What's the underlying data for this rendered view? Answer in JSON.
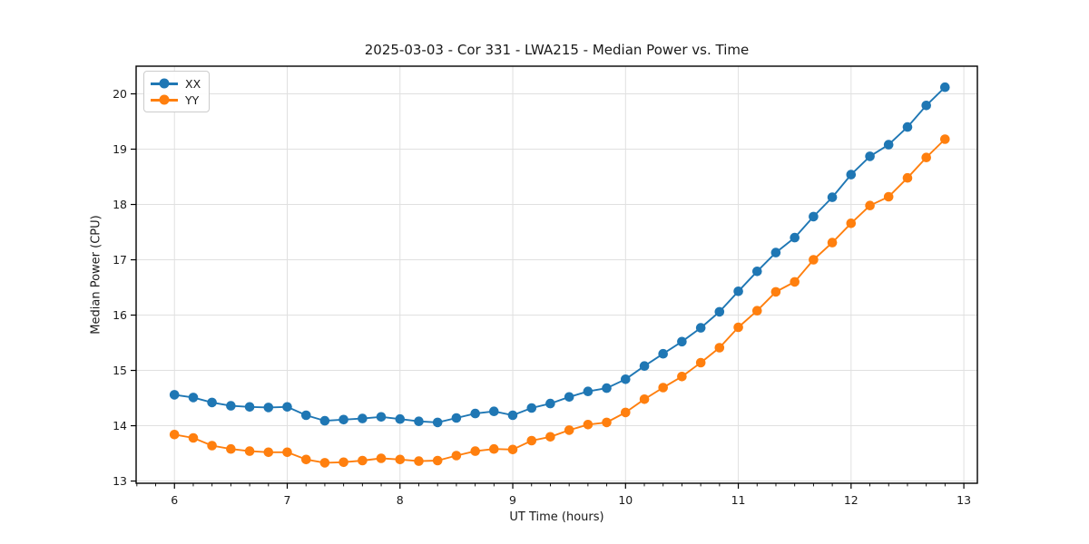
{
  "chart_data": {
    "type": "line",
    "title": "2025-03-03 - Cor 331 - LWA215 - Median Power vs. Time",
    "xlabel": "UT Time (hours)",
    "ylabel": "Median Power (CPU)",
    "xlim": [
      5.66,
      13.12
    ],
    "ylim": [
      12.96,
      20.5
    ],
    "xticks": [
      6,
      7,
      8,
      9,
      10,
      11,
      12,
      13
    ],
    "yticks": [
      13,
      14,
      15,
      16,
      17,
      18,
      19,
      20
    ],
    "x_minor_tick_step": 0.1667,
    "grid": "major-both",
    "legend_position": "upper-left",
    "colors": {
      "grid": "#e0e0e0",
      "axis": "#000000",
      "text": "#1a1a1a",
      "background": "#ffffff"
    },
    "x": [
      6.0,
      6.167,
      6.333,
      6.5,
      6.667,
      6.833,
      7.0,
      7.167,
      7.333,
      7.5,
      7.667,
      7.833,
      8.0,
      8.167,
      8.333,
      8.5,
      8.667,
      8.833,
      9.0,
      9.167,
      9.333,
      9.5,
      9.667,
      9.833,
      10.0,
      10.167,
      10.333,
      10.5,
      10.667,
      10.833,
      11.0,
      11.167,
      11.333,
      11.5,
      11.667,
      11.833,
      12.0,
      12.167,
      12.333,
      12.5,
      12.667,
      12.833
    ],
    "series": [
      {
        "name": "XX",
        "color": "#1f77b4",
        "values": [
          14.56,
          14.51,
          14.42,
          14.36,
          14.34,
          14.33,
          14.34,
          14.19,
          14.09,
          14.11,
          14.13,
          14.16,
          14.12,
          14.08,
          14.06,
          14.14,
          14.22,
          14.26,
          14.19,
          14.32,
          14.4,
          14.52,
          14.62,
          14.68,
          14.84,
          15.08,
          15.3,
          15.52,
          15.77,
          16.06,
          16.43,
          16.79,
          17.13,
          17.4,
          17.78,
          18.13,
          18.54,
          18.87,
          19.08,
          19.4,
          19.79,
          20.12
        ]
      },
      {
        "name": "YY",
        "color": "#ff7f0e",
        "values": [
          13.84,
          13.78,
          13.64,
          13.58,
          13.54,
          13.52,
          13.52,
          13.39,
          13.33,
          13.34,
          13.37,
          13.41,
          13.39,
          13.36,
          13.37,
          13.46,
          13.54,
          13.58,
          13.57,
          13.73,
          13.8,
          13.92,
          14.02,
          14.06,
          14.24,
          14.48,
          14.69,
          14.89,
          15.14,
          15.41,
          15.78,
          16.08,
          16.42,
          16.6,
          17.0,
          17.31,
          17.66,
          17.98,
          18.14,
          18.48,
          18.85,
          19.18
        ]
      }
    ]
  }
}
